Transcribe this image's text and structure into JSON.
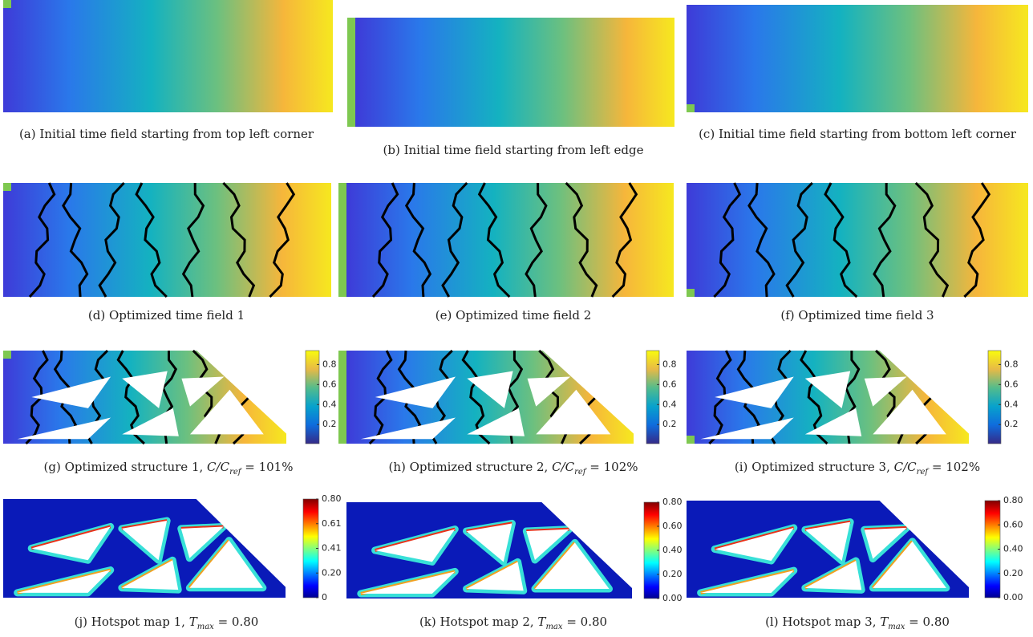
{
  "panels": [
    {
      "label": "(a)",
      "text": "Initial time field starting from top left corner"
    },
    {
      "label": "(b)",
      "text": "Initial time field starting from left edge"
    },
    {
      "label": "(c)",
      "text": "Initial time field starting from bottom left corner"
    },
    {
      "label": "(d)",
      "text": "Optimized time field 1"
    },
    {
      "label": "(e)",
      "text": "Optimized time field 2"
    },
    {
      "label": "(f)",
      "text": "Optimized time field 3"
    },
    {
      "label": "(g)",
      "text": "Optimized structure 1,",
      "math": "C/C",
      "sub": "ref",
      "eq": "= 101%",
      "colorbar": [
        "0.8",
        "0.6",
        "0.4",
        "0.2"
      ]
    },
    {
      "label": "(h)",
      "text": "Optimized structure 2,",
      "math": "C/C",
      "sub": "ref",
      "eq": "= 102%",
      "colorbar": [
        "0.8",
        "0.6",
        "0.4",
        "0.2"
      ]
    },
    {
      "label": "(i)",
      "text": "Optimized structure 3,",
      "math": "C/C",
      "sub": "ref",
      "eq": "= 102%",
      "colorbar": [
        "0.8",
        "0.6",
        "0.4",
        "0.2"
      ]
    },
    {
      "label": "(j)",
      "text": "Hotspot map 1,",
      "math": "T",
      "sub": "max",
      "eq": "= 0.80",
      "colorbar": [
        "0.80",
        "0.61",
        "0.41",
        "0.20",
        "0"
      ]
    },
    {
      "label": "(k)",
      "text": "Hotspot map 2,",
      "math": "T",
      "sub": "max",
      "eq": "= 0.80",
      "colorbar": [
        "0.80",
        "0.60",
        "0.40",
        "0.20",
        "0.00"
      ]
    },
    {
      "label": "(l)",
      "text": "Hotspot map 3,",
      "math": "T",
      "sub": "max",
      "eq": "= 0.80",
      "colorbar": [
        "0.80",
        "0.60",
        "0.40",
        "0.20",
        "0.00"
      ]
    }
  ]
}
